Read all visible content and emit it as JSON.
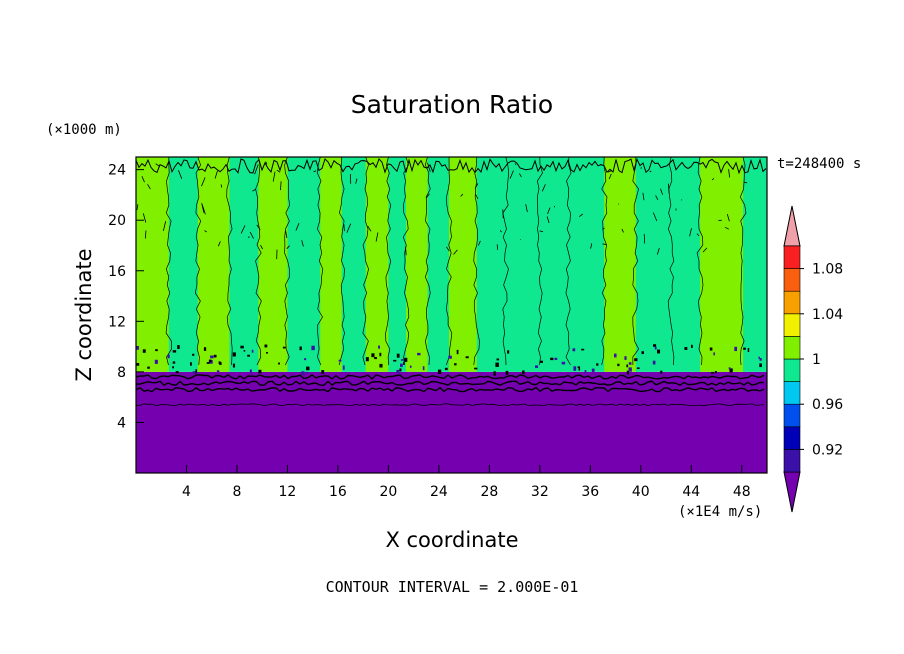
{
  "chart_data": {
    "type": "heatmap",
    "title": "Saturation Ratio",
    "xlabel": "X coordinate",
    "ylabel": "Z coordinate",
    "x_units": "(×1E4 m/s)",
    "y_units": "(×1000 m)",
    "xlim": [
      0,
      50
    ],
    "ylim": [
      0,
      25
    ],
    "x_ticks": [
      4,
      8,
      12,
      16,
      20,
      24,
      28,
      32,
      36,
      40,
      44,
      48
    ],
    "y_ticks": [
      4,
      8,
      12,
      16,
      20,
      24
    ],
    "time_label": "t=248400 s",
    "footnote": "CONTOUR INTERVAL = 2.000E-01",
    "colorbar": {
      "levels": [
        0.9,
        0.92,
        0.94,
        0.96,
        0.98,
        1.0,
        1.02,
        1.04,
        1.06,
        1.08,
        1.1
      ],
      "colors": [
        "#3a10a8",
        "#0000b8",
        "#0050f0",
        "#00c8f0",
        "#10e890",
        "#80f000",
        "#f0f000",
        "#f8a000",
        "#f86010",
        "#f82020"
      ],
      "under_color": "#7400b0",
      "over_color": "#f0a0a8",
      "labels": [
        {
          "value": 0.92,
          "text": "0.92"
        },
        {
          "value": 0.96,
          "text": "0.96"
        },
        {
          "value": 1.0,
          "text": "1"
        },
        {
          "value": 1.04,
          "text": "1.04"
        },
        {
          "value": 1.08,
          "text": "1.08"
        }
      ]
    },
    "field_summary": {
      "cloud_base_z": 8.0,
      "upper_layer_values": [
        0.99,
        1.01
      ],
      "lower_layer_value": "< 0.9",
      "column_x_edges": [
        0,
        2.6,
        4.9,
        7.4,
        9.7,
        12.0,
        14.6,
        16.3,
        18.2,
        20.0,
        21.4,
        23.1,
        24.8,
        27.0,
        29.3,
        32.0,
        34.3,
        37.1,
        39.6,
        42.4,
        44.7,
        48.1,
        50
      ],
      "column_values": [
        1.01,
        0.99,
        1.01,
        0.99,
        1.01,
        0.99,
        1.01,
        0.99,
        1.01,
        0.99,
        1.01,
        0.99,
        1.01,
        0.99,
        0.99,
        0.99,
        0.99,
        1.01,
        0.99,
        0.99,
        1.01,
        0.99
      ]
    }
  }
}
